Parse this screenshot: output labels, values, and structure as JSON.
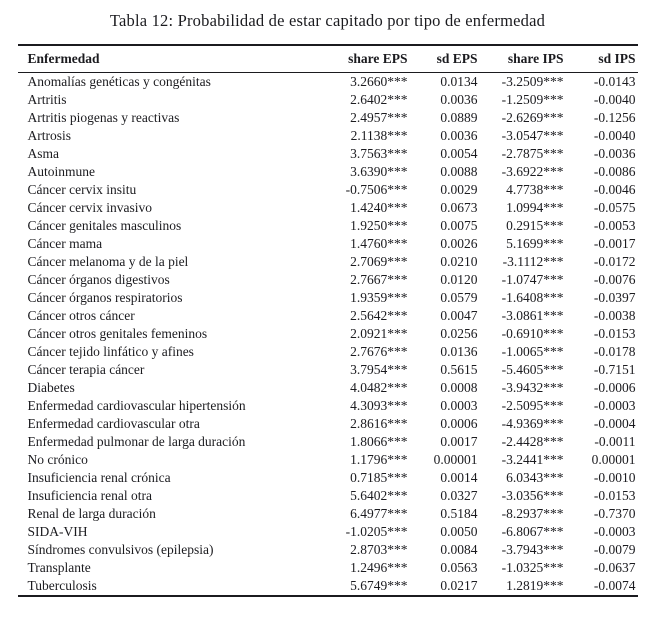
{
  "title": "Tabla 12: Probabilidad de estar capitado por tipo de enfermedad",
  "table": {
    "columns": [
      "Enfermedad",
      "share EPS",
      "sd EPS",
      "share IPS",
      "sd IPS"
    ],
    "rows": [
      [
        "Anomalías genéticas y congénitas",
        "3.2660***",
        "0.0134",
        "-3.2509***",
        "-0.0143"
      ],
      [
        "Artritis",
        "2.6402***",
        "0.0036",
        "-1.2509***",
        "-0.0040"
      ],
      [
        "Artritis piogenas y reactivas",
        "2.4957***",
        "0.0889",
        "-2.6269***",
        "-0.1256"
      ],
      [
        "Artrosis",
        "2.1138***",
        "0.0036",
        "-3.0547***",
        "-0.0040"
      ],
      [
        "Asma",
        "3.7563***",
        "0.0054",
        "-2.7875***",
        "-0.0036"
      ],
      [
        "Autoinmune",
        "3.6390***",
        "0.0088",
        "-3.6922***",
        "-0.0086"
      ],
      [
        "Cáncer cervix insitu",
        "-0.7506***",
        "0.0029",
        "4.7738***",
        "-0.0046"
      ],
      [
        "Cáncer cervix invasivo",
        "1.4240***",
        "0.0673",
        "1.0994***",
        "-0.0575"
      ],
      [
        "Cáncer genitales masculinos",
        "1.9250***",
        "0.0075",
        "0.2915***",
        "-0.0053"
      ],
      [
        "Cáncer mama",
        "1.4760***",
        "0.0026",
        "5.1699***",
        "-0.0017"
      ],
      [
        "Cáncer melanoma y de la piel",
        "2.7069***",
        "0.0210",
        "-3.1112***",
        "-0.0172"
      ],
      [
        "Cáncer órganos digestivos",
        "2.7667***",
        "0.0120",
        "-1.0747***",
        "-0.0076"
      ],
      [
        "Cáncer órganos respiratorios",
        "1.9359***",
        "0.0579",
        "-1.6408***",
        "-0.0397"
      ],
      [
        "Cáncer otros cáncer",
        "2.5642***",
        "0.0047",
        "-3.0861***",
        "-0.0038"
      ],
      [
        "Cáncer otros genitales femeninos",
        "2.0921***",
        "0.0256",
        "-0.6910***",
        "-0.0153"
      ],
      [
        "Cáncer tejido linfático y afines",
        "2.7676***",
        "0.0136",
        "-1.0065***",
        "-0.0178"
      ],
      [
        "Cáncer terapia cáncer",
        "3.7954***",
        "0.5615",
        "-5.4605***",
        "-0.7151"
      ],
      [
        "Diabetes",
        "4.0482***",
        "0.0008",
        "-3.9432***",
        "-0.0006"
      ],
      [
        "Enfermedad cardiovascular hipertensión",
        "4.3093***",
        "0.0003",
        "-2.5095***",
        "-0.0003"
      ],
      [
        "Enfermedad cardiovascular otra",
        "2.8616***",
        "0.0006",
        "-4.9369***",
        "-0.0004"
      ],
      [
        "Enfermedad pulmonar de larga duración",
        "1.8066***",
        "0.0017",
        "-2.4428***",
        "-0.0011"
      ],
      [
        "No crónico",
        "1.1796***",
        "0.00001",
        "-3.2441***",
        "0.00001"
      ],
      [
        "Insuficiencia renal crónica",
        "0.7185***",
        "0.0014",
        "6.0343***",
        "-0.0010"
      ],
      [
        "Insuficiencia renal otra",
        "5.6402***",
        "0.0327",
        "-3.0356***",
        "-0.0153"
      ],
      [
        "Renal de larga duración",
        "6.4977***",
        "0.5184",
        "-8.2937***",
        "-0.7370"
      ],
      [
        "SIDA-VIH",
        "-1.0205***",
        "0.0050",
        "-6.8067***",
        "-0.0003"
      ],
      [
        "Síndromes convulsivos (epilepsia)",
        "2.8703***",
        "0.0084",
        "-3.7943***",
        "-0.0079"
      ],
      [
        "Transplante",
        "1.2496***",
        "0.0563",
        "-1.0325***",
        "-0.0637"
      ],
      [
        "Tuberculosis",
        "5.6749***",
        "0.0217",
        "1.2819***",
        "-0.0074"
      ]
    ]
  }
}
